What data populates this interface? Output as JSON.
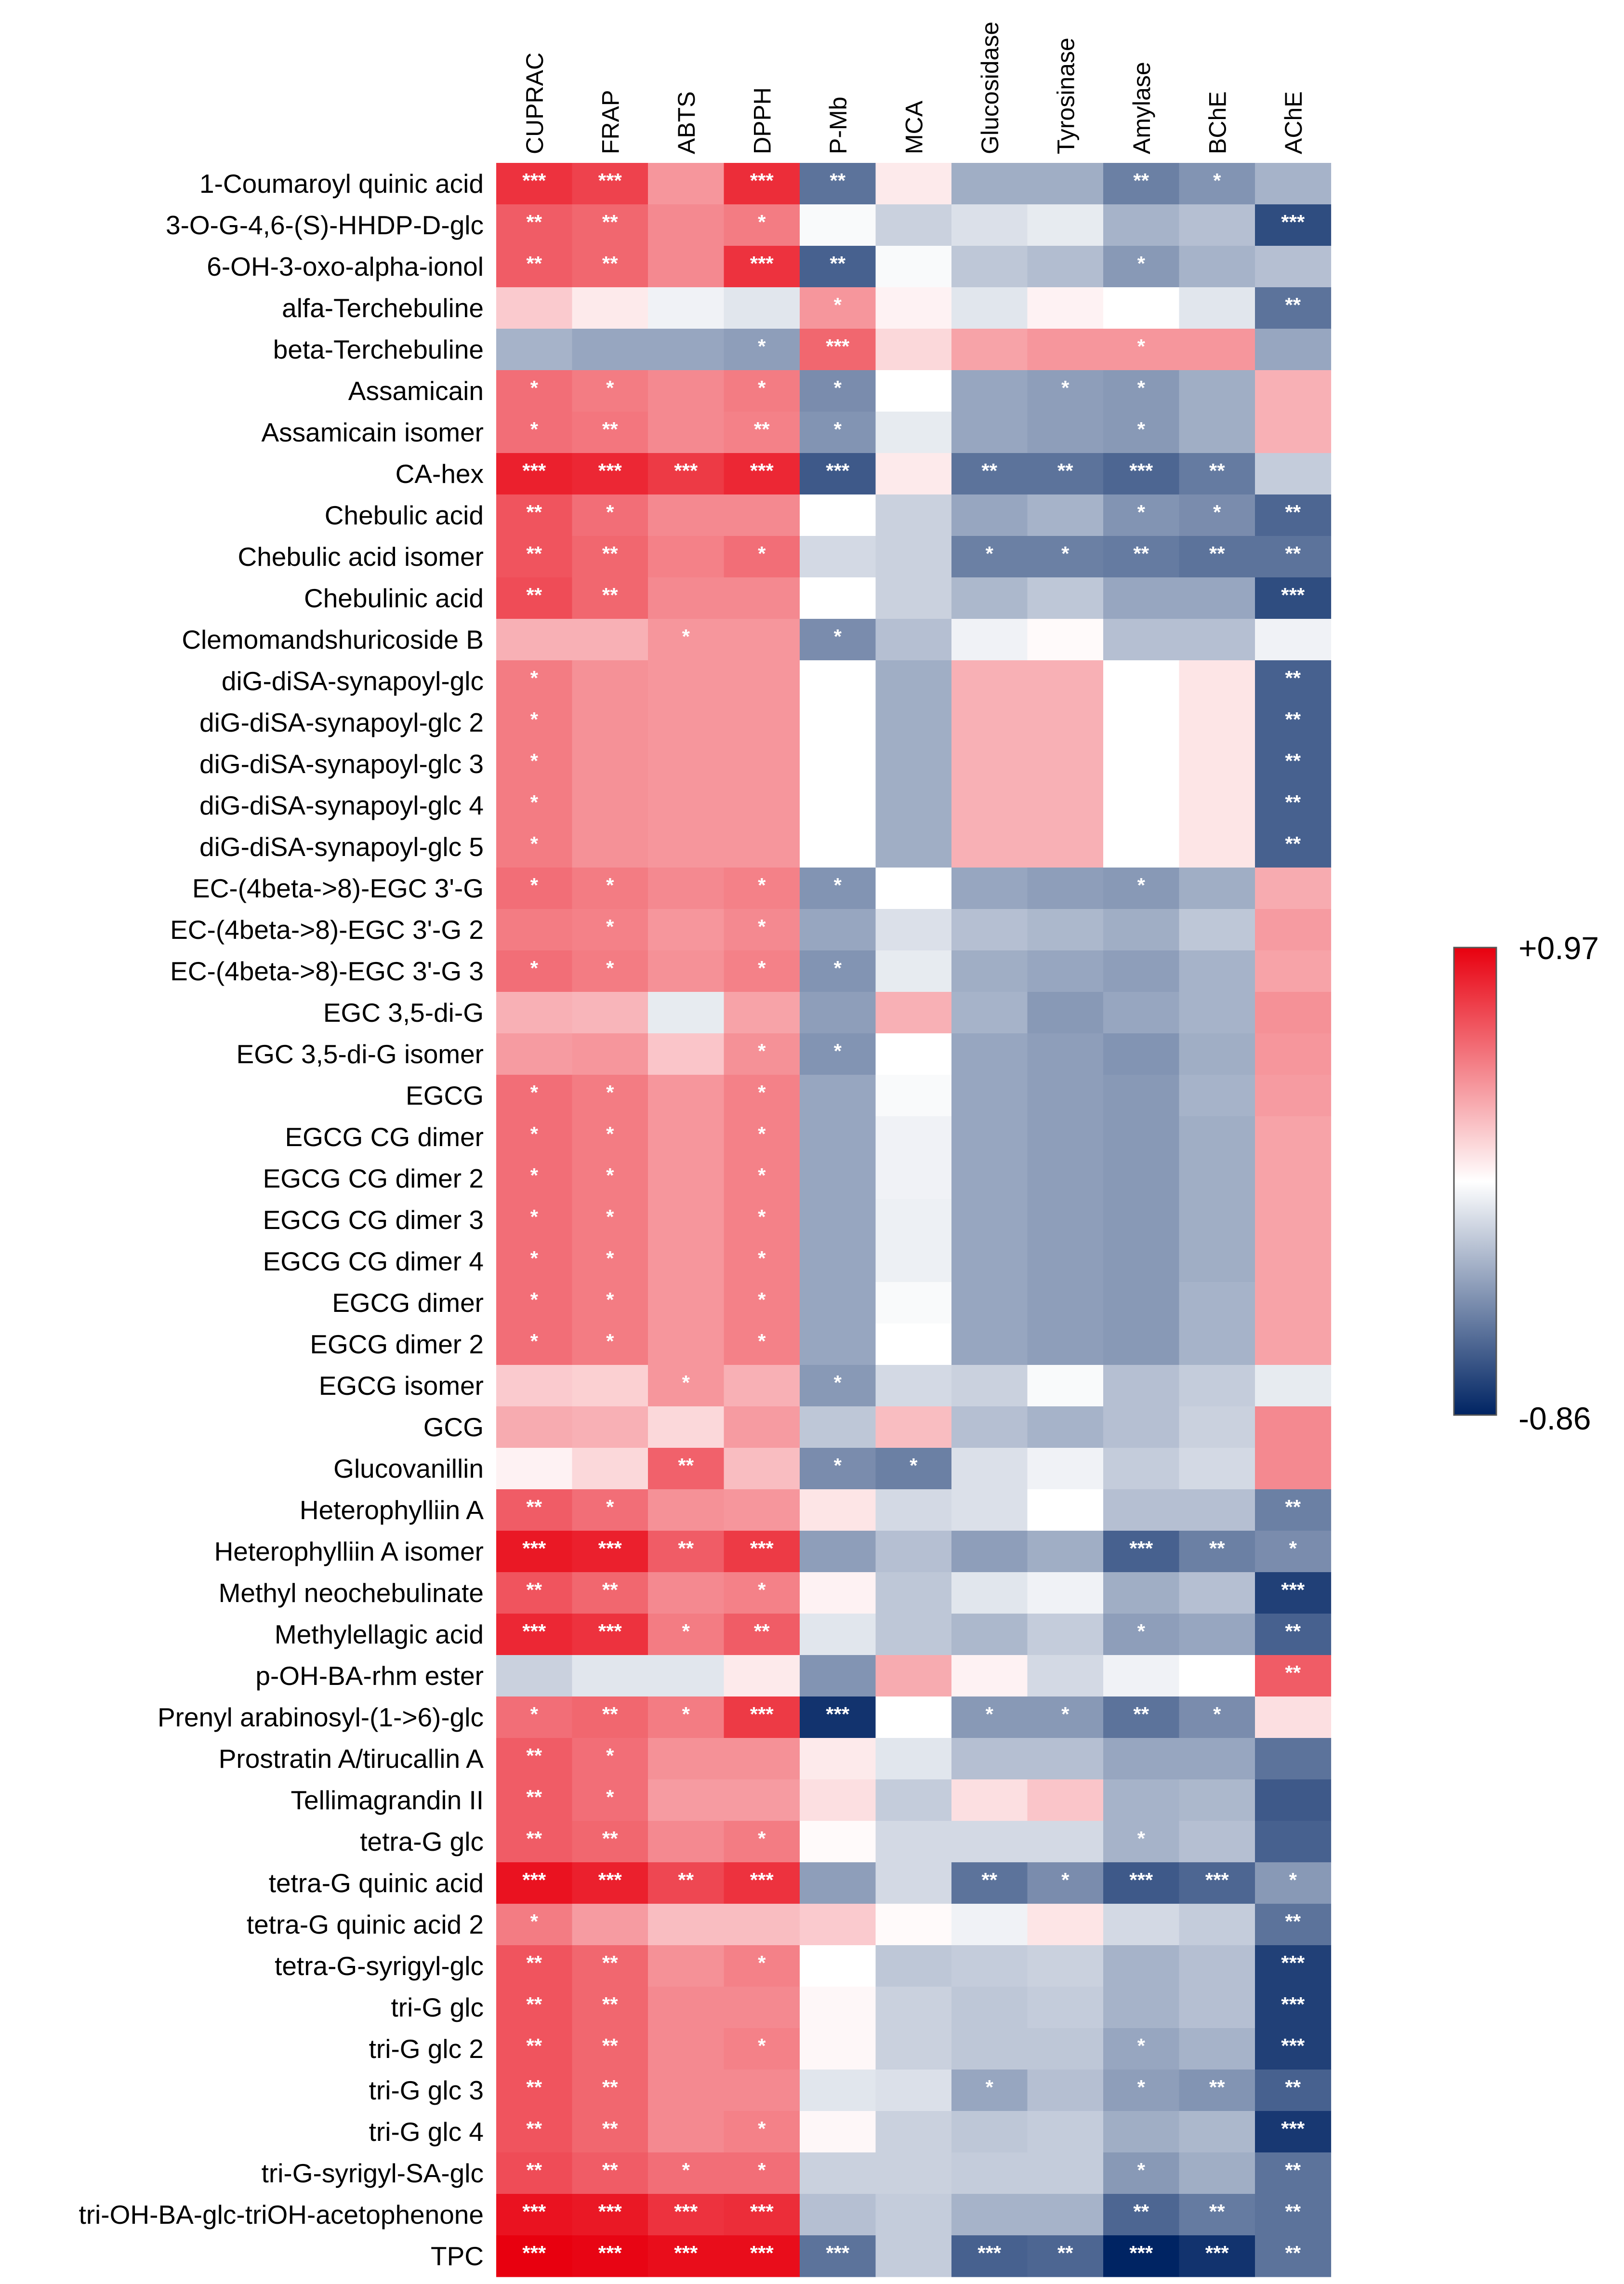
{
  "chart_data": {
    "type": "heatmap",
    "title": "",
    "columns": [
      "CUPRAC",
      "FRAP",
      "ABTS",
      "DPPH",
      "P-Mb",
      "MCA",
      "Glucosidase",
      "Tyrosinase",
      "Amylase",
      "BChE",
      "AChE"
    ],
    "rows": [
      "1-Coumaroyl quinic acid",
      "3-O-G-4,6-(S)-HHDP-D-glc",
      "6-OH-3-oxo-alpha-ionol",
      "alfa-Terchebuline",
      "beta-Terchebuline",
      "Assamicain",
      "Assamicain isomer",
      "CA-hex",
      "Chebulic acid",
      "Chebulic acid isomer",
      "Chebulinic acid",
      "Clemomandshuricoside B",
      "diG-diSA-synapoyl-glc",
      "diG-diSA-synapoyl-glc 2",
      "diG-diSA-synapoyl-glc 3",
      "diG-diSA-synapoyl-glc 4",
      "diG-diSA-synapoyl-glc 5",
      "EC-(4beta->8)-EGC 3'-G",
      "EC-(4beta->8)-EGC 3'-G 2",
      "EC-(4beta->8)-EGC 3'-G 3",
      "EGC 3,5-di-G",
      "EGC 3,5-di-G isomer",
      "EGCG",
      "EGCG CG dimer",
      "EGCG CG dimer 2",
      "EGCG CG dimer 3",
      "EGCG CG dimer 4",
      "EGCG dimer",
      "EGCG dimer 2",
      "EGCG isomer",
      "GCG",
      "Glucovanillin",
      "Heterophylliin A",
      "Heterophylliin A isomer",
      "Methyl neochebulinate",
      "Methylellagic acid",
      "p-OH-BA-rhm ester",
      "Prenyl arabinosyl-(1->6)-glc",
      "Prostratin A/tirucallin A",
      "Tellimagrandin II",
      "tetra-G glc",
      "tetra-G quinic acid",
      "tetra-G quinic acid 2",
      "tetra-G-syrigyl-glc",
      "tri-G glc",
      "tri-G glc 2",
      "tri-G glc 3",
      "tri-G glc 4",
      "tri-G-syrigyl-SA-glc",
      "tri-OH-BA-glc-triOH-acetophenone",
      "TPC"
    ],
    "values": [
      [
        0.78,
        0.72,
        0.4,
        0.8,
        -0.55,
        0.08,
        -0.32,
        -0.32,
        -0.5,
        -0.42,
        -0.3
      ],
      [
        0.62,
        0.58,
        0.45,
        0.5,
        -0.02,
        -0.18,
        -0.12,
        -0.08,
        -0.3,
        -0.25,
        -0.7
      ],
      [
        0.62,
        0.58,
        0.45,
        0.78,
        -0.62,
        -0.02,
        -0.22,
        -0.26,
        -0.4,
        -0.3,
        -0.25
      ],
      [
        0.2,
        0.08,
        -0.05,
        -0.1,
        0.4,
        0.05,
        -0.1,
        0.05,
        0.0,
        -0.1,
        -0.55
      ],
      [
        -0.3,
        -0.35,
        -0.35,
        -0.38,
        0.58,
        0.15,
        0.35,
        0.4,
        0.4,
        0.4,
        -0.35
      ],
      [
        0.55,
        0.5,
        0.45,
        0.5,
        -0.45,
        0.0,
        -0.35,
        -0.38,
        -0.4,
        -0.32,
        0.3
      ],
      [
        0.55,
        0.52,
        0.45,
        0.48,
        -0.42,
        -0.08,
        -0.35,
        -0.38,
        -0.4,
        -0.32,
        0.3
      ],
      [
        0.85,
        0.82,
        0.75,
        0.82,
        -0.65,
        0.08,
        -0.55,
        -0.55,
        -0.6,
        -0.52,
        -0.2
      ],
      [
        0.65,
        0.55,
        0.45,
        0.45,
        0.0,
        -0.18,
        -0.35,
        -0.3,
        -0.42,
        -0.45,
        -0.6
      ],
      [
        0.65,
        0.58,
        0.48,
        0.55,
        -0.15,
        -0.18,
        -0.5,
        -0.5,
        -0.52,
        -0.55,
        -0.55
      ],
      [
        0.68,
        0.58,
        0.45,
        0.45,
        0.0,
        -0.18,
        -0.28,
        -0.22,
        -0.35,
        -0.35,
        -0.7
      ],
      [
        0.3,
        0.3,
        0.4,
        0.4,
        -0.45,
        -0.25,
        -0.05,
        0.02,
        -0.25,
        -0.25,
        -0.05
      ],
      [
        0.5,
        0.42,
        0.4,
        0.4,
        0.0,
        -0.32,
        0.3,
        0.3,
        0.0,
        0.1,
        -0.62
      ],
      [
        0.5,
        0.42,
        0.4,
        0.4,
        0.0,
        -0.32,
        0.3,
        0.3,
        0.0,
        0.1,
        -0.62
      ],
      [
        0.5,
        0.42,
        0.4,
        0.4,
        0.0,
        -0.32,
        0.3,
        0.3,
        0.0,
        0.1,
        -0.62
      ],
      [
        0.5,
        0.42,
        0.4,
        0.4,
        0.0,
        -0.32,
        0.3,
        0.3,
        0.0,
        0.1,
        -0.62
      ],
      [
        0.5,
        0.42,
        0.4,
        0.4,
        0.0,
        -0.32,
        0.3,
        0.3,
        0.0,
        0.1,
        -0.62
      ],
      [
        0.55,
        0.5,
        0.45,
        0.48,
        -0.42,
        0.0,
        -0.35,
        -0.38,
        -0.4,
        -0.32,
        0.32
      ],
      [
        0.5,
        0.48,
        0.4,
        0.45,
        -0.35,
        -0.12,
        -0.25,
        -0.28,
        -0.32,
        -0.22,
        0.38
      ],
      [
        0.55,
        0.5,
        0.42,
        0.48,
        -0.42,
        -0.08,
        -0.32,
        -0.35,
        -0.38,
        -0.3,
        0.35
      ],
      [
        0.3,
        0.28,
        -0.08,
        0.35,
        -0.38,
        0.3,
        -0.3,
        -0.4,
        -0.35,
        -0.3,
        0.42
      ],
      [
        0.38,
        0.4,
        0.22,
        0.42,
        -0.42,
        0.0,
        -0.35,
        -0.38,
        -0.42,
        -0.32,
        0.4
      ],
      [
        0.55,
        0.5,
        0.4,
        0.48,
        -0.35,
        -0.02,
        -0.35,
        -0.38,
        -0.4,
        -0.3,
        0.38
      ],
      [
        0.55,
        0.5,
        0.4,
        0.48,
        -0.35,
        -0.05,
        -0.35,
        -0.38,
        -0.4,
        -0.32,
        0.35
      ],
      [
        0.55,
        0.5,
        0.4,
        0.48,
        -0.35,
        -0.05,
        -0.35,
        -0.38,
        -0.4,
        -0.32,
        0.35
      ],
      [
        0.55,
        0.5,
        0.4,
        0.48,
        -0.35,
        -0.06,
        -0.35,
        -0.38,
        -0.4,
        -0.32,
        0.35
      ],
      [
        0.55,
        0.5,
        0.4,
        0.48,
        -0.35,
        -0.06,
        -0.35,
        -0.38,
        -0.4,
        -0.32,
        0.35
      ],
      [
        0.55,
        0.5,
        0.4,
        0.48,
        -0.35,
        -0.02,
        -0.35,
        -0.38,
        -0.4,
        -0.3,
        0.35
      ],
      [
        0.55,
        0.5,
        0.4,
        0.48,
        -0.35,
        0.0,
        -0.35,
        -0.38,
        -0.4,
        -0.3,
        0.35
      ],
      [
        0.2,
        0.18,
        0.4,
        0.3,
        -0.4,
        -0.15,
        -0.18,
        -0.02,
        -0.25,
        -0.2,
        -0.08
      ],
      [
        0.32,
        0.3,
        0.15,
        0.38,
        -0.22,
        0.25,
        -0.25,
        -0.3,
        -0.25,
        -0.18,
        0.45
      ],
      [
        0.05,
        0.15,
        0.6,
        0.25,
        -0.45,
        -0.5,
        -0.12,
        -0.05,
        -0.2,
        -0.15,
        0.45
      ],
      [
        0.62,
        0.55,
        0.42,
        0.4,
        0.1,
        -0.15,
        -0.12,
        0.0,
        -0.25,
        -0.25,
        -0.5
      ],
      [
        0.88,
        0.85,
        0.62,
        0.75,
        -0.38,
        -0.25,
        -0.38,
        -0.32,
        -0.62,
        -0.5,
        -0.45
      ],
      [
        0.65,
        0.58,
        0.45,
        0.48,
        0.05,
        -0.22,
        -0.1,
        -0.05,
        -0.32,
        -0.25,
        -0.75
      ],
      [
        0.82,
        0.78,
        0.5,
        0.62,
        -0.1,
        -0.22,
        -0.28,
        -0.2,
        -0.38,
        -0.35,
        -0.62
      ],
      [
        -0.18,
        -0.1,
        -0.1,
        0.08,
        -0.42,
        0.32,
        0.05,
        -0.15,
        -0.05,
        0.0,
        0.62
      ],
      [
        0.55,
        0.58,
        0.5,
        0.75,
        -0.8,
        0.0,
        -0.4,
        -0.4,
        -0.55,
        -0.45,
        0.12
      ],
      [
        0.62,
        0.55,
        0.42,
        0.42,
        0.08,
        -0.1,
        -0.25,
        -0.25,
        -0.35,
        -0.35,
        -0.55
      ],
      [
        0.62,
        0.55,
        0.38,
        0.38,
        0.12,
        -0.2,
        0.12,
        0.22,
        -0.3,
        -0.28,
        -0.65
      ],
      [
        0.62,
        0.58,
        0.45,
        0.5,
        0.02,
        -0.15,
        -0.15,
        -0.15,
        -0.3,
        -0.25,
        -0.62
      ],
      [
        0.9,
        0.85,
        0.7,
        0.78,
        -0.38,
        -0.15,
        -0.55,
        -0.45,
        -0.65,
        -0.6,
        -0.4
      ],
      [
        0.5,
        0.38,
        0.25,
        0.25,
        0.2,
        0.02,
        -0.05,
        0.1,
        -0.15,
        -0.2,
        -0.55
      ],
      [
        0.65,
        0.58,
        0.42,
        0.48,
        0.0,
        -0.22,
        -0.2,
        -0.18,
        -0.3,
        -0.25,
        -0.75
      ],
      [
        0.65,
        0.58,
        0.45,
        0.45,
        0.03,
        -0.18,
        -0.22,
        -0.2,
        -0.3,
        -0.25,
        -0.75
      ],
      [
        0.65,
        0.58,
        0.45,
        0.48,
        0.03,
        -0.18,
        -0.22,
        -0.22,
        -0.35,
        -0.3,
        -0.75
      ],
      [
        0.65,
        0.58,
        0.45,
        0.45,
        -0.1,
        -0.12,
        -0.35,
        -0.25,
        -0.38,
        -0.42,
        -0.62
      ],
      [
        0.65,
        0.58,
        0.45,
        0.48,
        0.03,
        -0.18,
        -0.22,
        -0.2,
        -0.32,
        -0.28,
        -0.78
      ],
      [
        0.68,
        0.62,
        0.55,
        0.55,
        -0.18,
        -0.18,
        -0.2,
        -0.2,
        -0.4,
        -0.32,
        -0.55
      ],
      [
        0.9,
        0.88,
        0.78,
        0.8,
        -0.25,
        -0.2,
        -0.3,
        -0.3,
        -0.6,
        -0.52,
        -0.55
      ],
      [
        0.97,
        0.95,
        0.92,
        0.92,
        -0.55,
        -0.2,
        -0.62,
        -0.6,
        -0.86,
        -0.8,
        -0.55
      ]
    ],
    "significance": [
      [
        "***",
        "***",
        "",
        "***",
        "**",
        "",
        "",
        "",
        "**",
        "*",
        ""
      ],
      [
        "**",
        "**",
        "",
        "*",
        "",
        "",
        "",
        "",
        "",
        "",
        "***"
      ],
      [
        "**",
        "**",
        "",
        "***",
        "**",
        "",
        "",
        "",
        "*",
        "",
        ""
      ],
      [
        "",
        "",
        "",
        "",
        "*",
        "",
        "",
        "",
        "",
        "",
        "**"
      ],
      [
        "",
        "",
        "",
        "*",
        "***",
        "",
        "",
        "",
        "*",
        "",
        ""
      ],
      [
        "*",
        "*",
        "",
        "*",
        "*",
        "",
        "",
        "*",
        "*",
        "",
        ""
      ],
      [
        "*",
        "**",
        "",
        "**",
        "*",
        "",
        "",
        "",
        "*",
        "",
        ""
      ],
      [
        "***",
        "***",
        "***",
        "***",
        "***",
        "",
        "**",
        "**",
        "***",
        "**",
        ""
      ],
      [
        "**",
        "*",
        "",
        "",
        "",
        "",
        "",
        "",
        "*",
        "*",
        "**"
      ],
      [
        "**",
        "**",
        "",
        "*",
        "",
        "",
        "*",
        "*",
        "**",
        "**",
        "**"
      ],
      [
        "**",
        "**",
        "",
        "",
        "",
        "",
        "",
        "",
        "",
        "",
        "***"
      ],
      [
        "",
        "",
        "*",
        "",
        "*",
        "",
        "",
        "",
        "",
        "",
        ""
      ],
      [
        "*",
        "",
        "",
        "",
        "",
        "",
        "",
        "",
        "",
        "",
        "**"
      ],
      [
        "*",
        "",
        "",
        "",
        "",
        "",
        "",
        "",
        "",
        "",
        "**"
      ],
      [
        "*",
        "",
        "",
        "",
        "",
        "",
        "",
        "",
        "",
        "",
        "**"
      ],
      [
        "*",
        "",
        "",
        "",
        "",
        "",
        "",
        "",
        "",
        "",
        "**"
      ],
      [
        "*",
        "",
        "",
        "",
        "",
        "",
        "",
        "",
        "",
        "",
        "**"
      ],
      [
        "*",
        "*",
        "",
        "*",
        "*",
        "",
        "",
        "",
        "*",
        "",
        ""
      ],
      [
        "",
        "*",
        "",
        "*",
        "",
        "",
        "",
        "",
        "",
        "",
        ""
      ],
      [
        "*",
        "*",
        "",
        "*",
        "*",
        "",
        "",
        "",
        "",
        "",
        ""
      ],
      [
        "",
        "",
        "",
        "",
        "",
        "",
        "",
        "",
        "",
        "",
        ""
      ],
      [
        "",
        "",
        "",
        "*",
        "*",
        "",
        "",
        "",
        "",
        "",
        ""
      ],
      [
        "*",
        "*",
        "",
        "*",
        "",
        "",
        "",
        "",
        "",
        "",
        ""
      ],
      [
        "*",
        "*",
        "",
        "*",
        "",
        "",
        "",
        "",
        "",
        "",
        ""
      ],
      [
        "*",
        "*",
        "",
        "*",
        "",
        "",
        "",
        "",
        "",
        "",
        ""
      ],
      [
        "*",
        "*",
        "",
        "*",
        "",
        "",
        "",
        "",
        "",
        "",
        ""
      ],
      [
        "*",
        "*",
        "",
        "*",
        "",
        "",
        "",
        "",
        "",
        "",
        ""
      ],
      [
        "*",
        "*",
        "",
        "*",
        "",
        "",
        "",
        "",
        "",
        "",
        ""
      ],
      [
        "*",
        "*",
        "",
        "*",
        "",
        "",
        "",
        "",
        "",
        "",
        ""
      ],
      [
        "",
        "",
        "*",
        "",
        "*",
        "",
        "",
        "",
        "",
        "",
        ""
      ],
      [
        "",
        "",
        "",
        "",
        "",
        "",
        "",
        "",
        "",
        "",
        ""
      ],
      [
        "",
        "",
        "**",
        "",
        "*",
        "*",
        "",
        "",
        "",
        "",
        ""
      ],
      [
        "**",
        "*",
        "",
        "",
        "",
        "",
        "",
        "",
        "",
        "",
        "**"
      ],
      [
        "***",
        "***",
        "**",
        "***",
        "",
        "",
        "",
        "",
        "***",
        "**",
        "*"
      ],
      [
        "**",
        "**",
        "",
        "*",
        "",
        "",
        "",
        "",
        "",
        "",
        "***"
      ],
      [
        "***",
        "***",
        "*",
        "**",
        "",
        "",
        "",
        "",
        "*",
        "",
        "**"
      ],
      [
        "",
        "",
        "",
        "",
        "",
        "",
        "",
        "",
        "",
        "",
        "**"
      ],
      [
        "*",
        "**",
        "*",
        "***",
        "***",
        "",
        "*",
        "*",
        "**",
        "*",
        ""
      ],
      [
        "**",
        "*",
        "",
        "",
        "",
        "",
        "",
        "",
        "",
        "",
        ""
      ],
      [
        "**",
        "*",
        "",
        "",
        "",
        "",
        "",
        "",
        "",
        "",
        ""
      ],
      [
        "**",
        "**",
        "",
        "*",
        "",
        "",
        "",
        "",
        "*",
        "",
        ""
      ],
      [
        "***",
        "***",
        "**",
        "***",
        "",
        "",
        "**",
        "*",
        "***",
        "***",
        "*"
      ],
      [
        "*",
        "",
        "",
        "",
        "",
        "",
        "",
        "",
        "",
        "",
        "**"
      ],
      [
        "**",
        "**",
        "",
        "*",
        "",
        "",
        "",
        "",
        "",
        "",
        "***"
      ],
      [
        "**",
        "**",
        "",
        "",
        "",
        "",
        "",
        "",
        "",
        "",
        "***"
      ],
      [
        "**",
        "**",
        "",
        "*",
        "",
        "",
        "",
        "",
        "*",
        "",
        "***"
      ],
      [
        "**",
        "**",
        "",
        "",
        "",
        "",
        "*",
        "",
        "*",
        "**",
        "**"
      ],
      [
        "**",
        "**",
        "",
        "*",
        "",
        "",
        "",
        "",
        "",
        "",
        "***"
      ],
      [
        "**",
        "**",
        "*",
        "*",
        "",
        "",
        "",
        "",
        "*",
        "",
        "**"
      ],
      [
        "***",
        "***",
        "***",
        "***",
        "",
        "",
        "",
        "",
        "**",
        "**",
        "**"
      ],
      [
        "***",
        "***",
        "***",
        "***",
        "***",
        "",
        "***",
        "**",
        "***",
        "***",
        "**"
      ]
    ],
    "legend": {
      "max_label": "+0.97",
      "min_label": "-0.86",
      "max": 0.97,
      "min": -0.86,
      "placement": "right",
      "high_color": "#e8000f",
      "mid_color": "#ffffff",
      "low_color": "#002463"
    }
  }
}
